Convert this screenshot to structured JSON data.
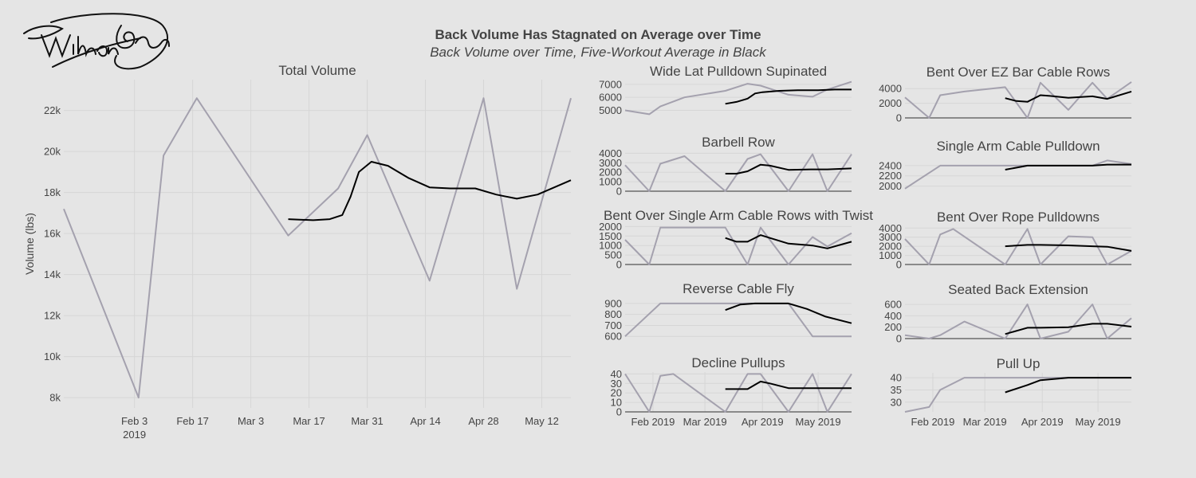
{
  "title": "Back Volume Has Stagnated on Average over Time",
  "subtitle": "Back Volume over Time, Five-Workout Average in Black",
  "signature_text": "William Greenlaw",
  "colors": {
    "background": "#e5e5e5",
    "raw_line": "#a4a1ae",
    "avg_line": "#000000",
    "grid": "#d6d6d6",
    "zero_line": "#555555",
    "text": "#444444"
  },
  "chart_data": [
    {
      "type": "line",
      "title": "Total Volume",
      "ylabel": "Volume (lbs)",
      "grid": true,
      "xlim": [
        "2019-01-17",
        "2019-05-19"
      ],
      "ylim": [
        7500,
        23500
      ],
      "yticks": [
        8000,
        10000,
        12000,
        14000,
        16000,
        18000,
        20000,
        22000
      ],
      "ytick_labels": [
        "8k",
        "10k",
        "12k",
        "14k",
        "16k",
        "18k",
        "20k",
        "22k"
      ],
      "xticks": [
        "2019-02-03",
        "2019-02-17",
        "2019-03-03",
        "2019-03-17",
        "2019-03-31",
        "2019-04-14",
        "2019-04-28",
        "2019-05-12"
      ],
      "xtick_labels": [
        "Feb 3",
        "Feb 17",
        "Mar 3",
        "Mar 17",
        "Mar 31",
        "Apr 14",
        "Apr 28",
        "May 12"
      ],
      "xtick_sublabel": "2019",
      "series": [
        {
          "style": "raw",
          "x": [
            "2019-01-17",
            "2019-02-04",
            "2019-02-10",
            "2019-02-18",
            "2019-03-12",
            "2019-03-24",
            "2019-03-31",
            "2019-04-15",
            "2019-04-28",
            "2019-05-06",
            "2019-05-19"
          ],
          "values": [
            17200,
            8000,
            19800,
            22600,
            15900,
            18200,
            20800,
            13700,
            22600,
            13300,
            22600
          ]
        },
        {
          "style": "avg",
          "x": [
            "2019-03-12",
            "2019-03-18",
            "2019-03-22",
            "2019-03-25",
            "2019-03-27",
            "2019-03-29",
            "2019-04-01",
            "2019-04-05",
            "2019-04-10",
            "2019-04-15",
            "2019-04-20",
            "2019-04-26",
            "2019-05-01",
            "2019-05-06",
            "2019-05-11",
            "2019-05-19"
          ],
          "values": [
            16700,
            16650,
            16700,
            16900,
            17800,
            19000,
            19500,
            19300,
            18700,
            18250,
            18200,
            18200,
            17900,
            17700,
            17900,
            18600
          ]
        }
      ]
    },
    {
      "type": "line",
      "title": "Wide Lat Pulldown Supinated",
      "grid": true,
      "xlim": [
        "2019-01-17",
        "2019-05-19"
      ],
      "ylim": [
        4600,
        7300
      ],
      "yticks": [
        5000,
        6000,
        7000
      ],
      "ytick_labels": [
        "5000",
        "6000",
        "7000"
      ],
      "xticks": [],
      "xtick_labels": [],
      "series": [
        {
          "style": "raw",
          "x": [
            "2019-01-17",
            "2019-01-30",
            "2019-02-05",
            "2019-02-18",
            "2019-03-12",
            "2019-03-24",
            "2019-03-31",
            "2019-04-15",
            "2019-04-28",
            "2019-05-06",
            "2019-05-19"
          ],
          "values": [
            5000,
            4700,
            5300,
            6000,
            6500,
            7050,
            6900,
            6200,
            6050,
            6600,
            7200
          ]
        },
        {
          "style": "avg",
          "x": [
            "2019-03-12",
            "2019-03-18",
            "2019-03-24",
            "2019-03-28",
            "2019-04-01",
            "2019-04-10",
            "2019-04-20",
            "2019-05-01",
            "2019-05-10",
            "2019-05-19"
          ],
          "values": [
            5500,
            5650,
            5900,
            6300,
            6400,
            6500,
            6550,
            6550,
            6600,
            6600
          ]
        }
      ]
    },
    {
      "type": "line",
      "title": "Bent Over EZ Bar Cable Rows",
      "grid": true,
      "xlim": [
        "2019-01-17",
        "2019-05-19"
      ],
      "ylim": [
        0,
        5000
      ],
      "yticks": [
        0,
        2000,
        4000
      ],
      "ytick_labels": [
        "0",
        "2000",
        "4000"
      ],
      "xticks": [],
      "xtick_labels": [],
      "series": [
        {
          "style": "raw",
          "x": [
            "2019-01-17",
            "2019-01-30",
            "2019-02-05",
            "2019-02-18",
            "2019-03-12",
            "2019-03-24",
            "2019-03-31",
            "2019-04-15",
            "2019-04-28",
            "2019-05-06",
            "2019-05-19"
          ],
          "values": [
            2800,
            0,
            3100,
            3600,
            4200,
            0,
            4800,
            1100,
            4800,
            2600,
            4900
          ]
        },
        {
          "style": "avg",
          "x": [
            "2019-03-12",
            "2019-03-18",
            "2019-03-24",
            "2019-03-31",
            "2019-04-05",
            "2019-04-15",
            "2019-04-28",
            "2019-05-06",
            "2019-05-19"
          ],
          "values": [
            2700,
            2300,
            2200,
            3100,
            3000,
            2750,
            2950,
            2600,
            3600
          ]
        }
      ]
    },
    {
      "type": "line",
      "title": "Barbell Row",
      "grid": true,
      "xlim": [
        "2019-01-17",
        "2019-05-19"
      ],
      "ylim": [
        0,
        4200
      ],
      "yticks": [
        0,
        1000,
        2000,
        3000,
        4000
      ],
      "ytick_labels": [
        "0",
        "1000",
        "2000",
        "3000",
        "4000"
      ],
      "xticks": [],
      "xtick_labels": [],
      "series": [
        {
          "style": "raw",
          "x": [
            "2019-01-17",
            "2019-01-30",
            "2019-02-05",
            "2019-02-18",
            "2019-03-12",
            "2019-03-24",
            "2019-03-31",
            "2019-04-15",
            "2019-04-28",
            "2019-05-06",
            "2019-05-19"
          ],
          "values": [
            2750,
            0,
            2900,
            3700,
            0,
            3400,
            3900,
            0,
            3900,
            0,
            3900
          ]
        },
        {
          "style": "avg",
          "x": [
            "2019-03-12",
            "2019-03-18",
            "2019-03-24",
            "2019-03-31",
            "2019-04-05",
            "2019-04-15",
            "2019-04-28",
            "2019-05-06",
            "2019-05-19"
          ],
          "values": [
            1850,
            1850,
            2100,
            2800,
            2700,
            2250,
            2300,
            2300,
            2400
          ]
        }
      ]
    },
    {
      "type": "line",
      "title": "Single Arm Cable Pulldown",
      "grid": true,
      "xlim": [
        "2019-01-17",
        "2019-05-19"
      ],
      "ylim": [
        1900,
        2600
      ],
      "yticks": [
        2000,
        2200,
        2400
      ],
      "ytick_labels": [
        "2000",
        "2200",
        "2400"
      ],
      "xticks": [],
      "xtick_labels": [],
      "series": [
        {
          "style": "raw",
          "x": [
            "2019-01-17",
            "2019-02-05",
            "2019-02-18",
            "2019-03-12",
            "2019-03-24",
            "2019-03-31",
            "2019-04-15",
            "2019-04-28",
            "2019-05-06",
            "2019-05-19"
          ],
          "values": [
            1950,
            2400,
            2400,
            2400,
            2400,
            2400,
            2400,
            2400,
            2500,
            2430
          ]
        },
        {
          "style": "avg",
          "x": [
            "2019-03-12",
            "2019-03-24",
            "2019-03-31",
            "2019-04-15",
            "2019-04-28",
            "2019-05-06",
            "2019-05-19"
          ],
          "values": [
            2320,
            2400,
            2400,
            2400,
            2400,
            2420,
            2420
          ]
        }
      ]
    },
    {
      "type": "line",
      "title": "Bent Over Single Arm Cable Rows with Twist",
      "grid": true,
      "xlim": [
        "2019-01-17",
        "2019-05-19"
      ],
      "ylim": [
        0,
        2100
      ],
      "yticks": [
        0,
        500,
        1000,
        1500,
        2000
      ],
      "ytick_labels": [
        "0",
        "500",
        "1000",
        "1500",
        "2000"
      ],
      "xticks": [],
      "xtick_labels": [],
      "series": [
        {
          "style": "raw",
          "x": [
            "2019-01-17",
            "2019-01-30",
            "2019-02-05",
            "2019-02-18",
            "2019-03-12",
            "2019-03-24",
            "2019-03-31",
            "2019-04-15",
            "2019-04-28",
            "2019-05-06",
            "2019-05-19"
          ],
          "values": [
            1300,
            0,
            1950,
            1950,
            1950,
            0,
            1950,
            0,
            1450,
            950,
            1650
          ]
        },
        {
          "style": "avg",
          "x": [
            "2019-03-12",
            "2019-03-18",
            "2019-03-24",
            "2019-03-31",
            "2019-04-05",
            "2019-04-15",
            "2019-04-28",
            "2019-05-06",
            "2019-05-19"
          ],
          "values": [
            1400,
            1200,
            1200,
            1550,
            1400,
            1100,
            1000,
            850,
            1200
          ]
        }
      ]
    },
    {
      "type": "line",
      "title": "Bent Over Rope Pulldowns",
      "grid": true,
      "xlim": [
        "2019-01-17",
        "2019-05-19"
      ],
      "ylim": [
        0,
        4200
      ],
      "yticks": [
        0,
        1000,
        2000,
        3000,
        4000
      ],
      "ytick_labels": [
        "0",
        "1000",
        "2000",
        "3000",
        "4000"
      ],
      "xticks": [],
      "xtick_labels": [],
      "series": [
        {
          "style": "raw",
          "x": [
            "2019-01-17",
            "2019-01-30",
            "2019-02-05",
            "2019-02-12",
            "2019-03-12",
            "2019-03-24",
            "2019-03-31",
            "2019-04-15",
            "2019-04-28",
            "2019-05-06",
            "2019-05-19"
          ],
          "values": [
            2800,
            0,
            3300,
            3900,
            0,
            3900,
            0,
            3100,
            3000,
            0,
            1500
          ]
        },
        {
          "style": "avg",
          "x": [
            "2019-03-12",
            "2019-03-24",
            "2019-03-31",
            "2019-04-15",
            "2019-04-28",
            "2019-05-06",
            "2019-05-19"
          ],
          "values": [
            2000,
            2150,
            2150,
            2100,
            2000,
            1950,
            1500
          ]
        }
      ]
    },
    {
      "type": "line",
      "title": "Reverse Cable Fly",
      "grid": true,
      "xlim": [
        "2019-01-17",
        "2019-05-19"
      ],
      "ylim": [
        580,
        950
      ],
      "yticks": [
        600,
        700,
        800,
        900
      ],
      "ytick_labels": [
        "600",
        "700",
        "800",
        "900"
      ],
      "xticks": [],
      "xtick_labels": [],
      "series": [
        {
          "style": "raw",
          "x": [
            "2019-01-17",
            "2019-02-05",
            "2019-02-18",
            "2019-03-12",
            "2019-03-24",
            "2019-03-31",
            "2019-04-15",
            "2019-04-28",
            "2019-05-06",
            "2019-05-19"
          ],
          "values": [
            600,
            900,
            900,
            900,
            900,
            900,
            900,
            600,
            600,
            600
          ]
        },
        {
          "style": "avg",
          "x": [
            "2019-03-12",
            "2019-03-20",
            "2019-03-28",
            "2019-04-05",
            "2019-04-15",
            "2019-04-25",
            "2019-05-05",
            "2019-05-19"
          ],
          "values": [
            840,
            890,
            900,
            900,
            900,
            850,
            780,
            720
          ]
        }
      ]
    },
    {
      "type": "line",
      "title": "Seated Back Extension",
      "grid": true,
      "xlim": [
        "2019-01-17",
        "2019-05-19"
      ],
      "ylim": [
        0,
        700
      ],
      "yticks": [
        0,
        200,
        400,
        600
      ],
      "ytick_labels": [
        "0",
        "200",
        "400",
        "600"
      ],
      "xticks": [],
      "xtick_labels": [],
      "series": [
        {
          "style": "raw",
          "x": [
            "2019-01-17",
            "2019-01-30",
            "2019-02-05",
            "2019-02-18",
            "2019-03-12",
            "2019-03-24",
            "2019-03-31",
            "2019-04-15",
            "2019-04-28",
            "2019-05-06",
            "2019-05-19"
          ],
          "values": [
            60,
            0,
            60,
            300,
            0,
            600,
            0,
            120,
            600,
            0,
            360
          ]
        },
        {
          "style": "avg",
          "x": [
            "2019-03-12",
            "2019-03-24",
            "2019-03-31",
            "2019-04-15",
            "2019-04-28",
            "2019-05-06",
            "2019-05-19"
          ],
          "values": [
            80,
            190,
            190,
            200,
            260,
            260,
            210
          ]
        }
      ]
    },
    {
      "type": "line",
      "title": "Decline Pullups",
      "grid": true,
      "xlim": [
        "2019-01-17",
        "2019-05-19"
      ],
      "ylim": [
        0,
        42
      ],
      "yticks": [
        0,
        10,
        20,
        30,
        40
      ],
      "ytick_labels": [
        "0",
        "10",
        "20",
        "30",
        "40"
      ],
      "xticks": [
        "2019-02-01",
        "2019-03-01",
        "2019-04-01",
        "2019-05-01"
      ],
      "xtick_labels": [
        "Feb 2019",
        "Mar 2019",
        "Apr 2019",
        "May 2019"
      ],
      "series": [
        {
          "style": "raw",
          "x": [
            "2019-01-17",
            "2019-01-30",
            "2019-02-05",
            "2019-02-12",
            "2019-03-12",
            "2019-03-24",
            "2019-03-31",
            "2019-04-15",
            "2019-04-28",
            "2019-05-06",
            "2019-05-19"
          ],
          "values": [
            40,
            0,
            38,
            40,
            0,
            40,
            40,
            0,
            40,
            0,
            40
          ]
        },
        {
          "style": "avg",
          "x": [
            "2019-03-12",
            "2019-03-24",
            "2019-03-31",
            "2019-04-05",
            "2019-04-15",
            "2019-04-28",
            "2019-05-06",
            "2019-05-19"
          ],
          "values": [
            24,
            24,
            32,
            30,
            25,
            25,
            25,
            25
          ]
        }
      ]
    },
    {
      "type": "line",
      "title": "Pull Up",
      "grid": true,
      "xlim": [
        "2019-01-17",
        "2019-05-19"
      ],
      "ylim": [
        26,
        42
      ],
      "yticks": [
        30,
        35,
        40
      ],
      "ytick_labels": [
        "30",
        "35",
        "40"
      ],
      "xticks": [
        "2019-02-01",
        "2019-03-01",
        "2019-04-01",
        "2019-05-01"
      ],
      "xtick_labels": [
        "Feb 2019",
        "Mar 2019",
        "Apr 2019",
        "May 2019"
      ],
      "series": [
        {
          "style": "raw",
          "x": [
            "2019-01-17",
            "2019-01-30",
            "2019-02-05",
            "2019-02-18",
            "2019-03-12",
            "2019-03-24",
            "2019-03-31",
            "2019-04-15",
            "2019-04-28",
            "2019-05-06",
            "2019-05-19"
          ],
          "values": [
            26,
            28,
            35,
            40,
            40,
            40,
            40,
            40,
            40,
            40,
            40
          ]
        },
        {
          "style": "avg",
          "x": [
            "2019-03-12",
            "2019-03-24",
            "2019-03-31",
            "2019-04-15",
            "2019-04-28",
            "2019-05-06",
            "2019-05-19"
          ],
          "values": [
            34,
            37,
            39,
            40,
            40,
            40,
            40
          ]
        }
      ]
    }
  ]
}
